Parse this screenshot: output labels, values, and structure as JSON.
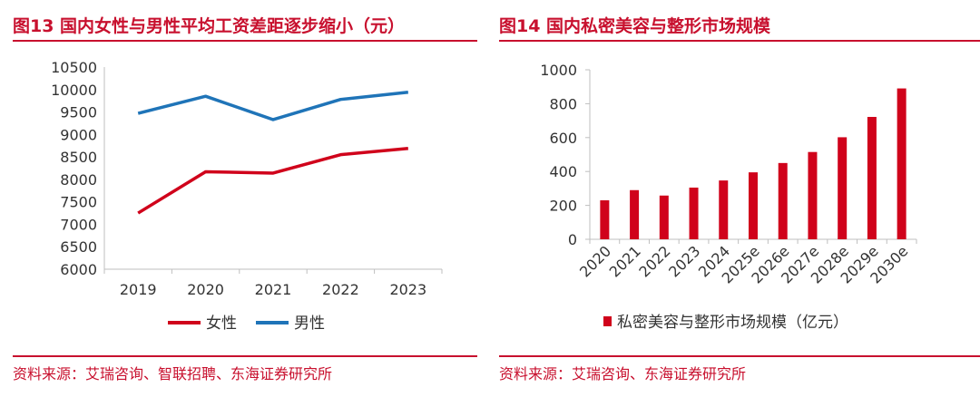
{
  "colors": {
    "accent": "#c8102e",
    "female": "#d0021b",
    "male": "#1f74b8",
    "bar": "#d0021b",
    "axis": "#bfbfbf",
    "text": "#333333"
  },
  "left": {
    "title": "图13  国内女性与男性平均工资差距逐步缩小（元）",
    "source": "资料来源：艾瑞咨询、智联招聘、东海证券研究所"
  },
  "right": {
    "title": "图14  国内私密美容与整形市场规模",
    "source": "资料来源：艾瑞咨询、东海证券研究所"
  },
  "chart_data": [
    {
      "type": "line",
      "title": "国内女性与男性平均工资差距逐步缩小（元）",
      "categories": [
        "2019",
        "2020",
        "2021",
        "2022",
        "2023"
      ],
      "series": [
        {
          "name": "女性",
          "values": [
            7250,
            8170,
            8140,
            8550,
            8690
          ]
        },
        {
          "name": "男性",
          "values": [
            9470,
            9850,
            9330,
            9780,
            9940
          ]
        }
      ],
      "ylim": [
        6000,
        10500
      ],
      "yticks": [
        "6000",
        "6500",
        "7000",
        "7500",
        "8000",
        "8500",
        "9000",
        "9500",
        "10000",
        "10500"
      ],
      "legend": "bottom",
      "xlabel": "",
      "ylabel": ""
    },
    {
      "type": "bar",
      "title": "国内私密美容与整形市场规模",
      "categories": [
        "2020",
        "2021",
        "2022",
        "2023",
        "2024",
        "2025e",
        "2026e",
        "2027e",
        "2028e",
        "2029e",
        "2030e"
      ],
      "series": [
        {
          "name": "私密美容与整形市场规模（亿元）",
          "values": [
            230,
            290,
            258,
            305,
            347,
            395,
            450,
            515,
            602,
            722,
            890
          ]
        }
      ],
      "ylim": [
        0,
        1000
      ],
      "yticks": [
        "0",
        "200",
        "400",
        "600",
        "800",
        "1000"
      ],
      "legend": "bottom",
      "xlabel": "",
      "ylabel": ""
    }
  ]
}
